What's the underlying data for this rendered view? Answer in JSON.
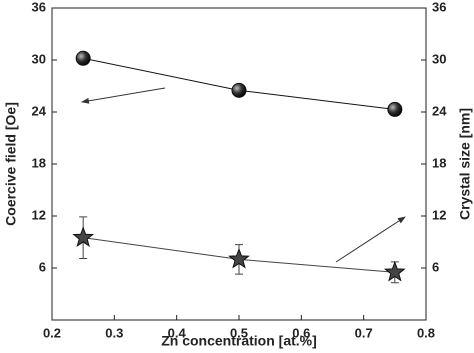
{
  "chart_data": {
    "type": "line",
    "x_label": "Zn concentration [at.%]",
    "y_label": "Coercive field [Oe]",
    "y2_label": "Crystal size [nm]",
    "xlim": [
      0.2,
      0.8
    ],
    "xticks": [
      0.2,
      0.3,
      0.4,
      0.5,
      0.6,
      0.7,
      0.8
    ],
    "ylim": [
      0,
      36
    ],
    "yticks": [
      6,
      12,
      18,
      24,
      30,
      36
    ],
    "y2lim": [
      0,
      36
    ],
    "y2ticks": [
      6,
      12,
      18,
      24,
      30,
      36
    ],
    "series": [
      {
        "color": "#444444",
        "marker": "star",
        "x": [
          0.25,
          0.5,
          0.75
        ],
        "values": [
          9.5,
          7.0,
          5.5
        ],
        "errors": [
          2.4,
          1.7,
          1.2
        ]
      },
      {
        "color": "#111111",
        "marker": "circle",
        "axis": "y2",
        "x": [
          0.25,
          0.5,
          0.75
        ],
        "values": [
          30.2,
          26.5,
          24.3
        ]
      }
    ]
  }
}
